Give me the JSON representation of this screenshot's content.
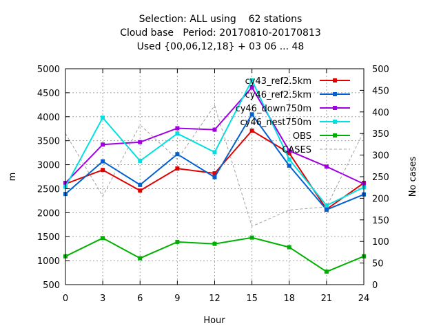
{
  "chart_data": {
    "type": "line",
    "title_lines": [
      "Selection: ALL using    62 stations",
      "Cloud base   Period: 20170810-20170813",
      "Used {00,06,12,18} + 03 06 ... 48"
    ],
    "xlabel": "Hour",
    "ylabel": "m",
    "y2label": "No cases",
    "x": [
      0,
      3,
      6,
      9,
      12,
      15,
      18,
      21,
      24
    ],
    "x_ticks": [
      "0",
      "3",
      "6",
      "9",
      "12",
      "15",
      "18",
      "21",
      "24"
    ],
    "xlim": [
      0,
      24
    ],
    "ylim": [
      500,
      5000
    ],
    "y_ticks": [
      "500",
      "1000",
      "1500",
      "2000",
      "2500",
      "3000",
      "3500",
      "4000",
      "4500",
      "5000"
    ],
    "y2lim": [
      0,
      500
    ],
    "y2_ticks": [
      "0",
      "50",
      "100",
      "150",
      "200",
      "250",
      "300",
      "350",
      "400",
      "450",
      "500"
    ],
    "grid": true,
    "legend_position": "top-right",
    "series": [
      {
        "name": "cy43_ref2.5km",
        "color": "#e00000",
        "marker": "square",
        "axis": "y1",
        "values": [
          2600,
          2890,
          2460,
          2920,
          2820,
          3710,
          3240,
          2070,
          2620
        ]
      },
      {
        "name": "cy46_ref2.5km",
        "color": "#0060d0",
        "marker": "square",
        "axis": "y1",
        "values": [
          2390,
          3070,
          2580,
          3220,
          2740,
          4050,
          2980,
          2060,
          2380
        ]
      },
      {
        "name": "cy46_down750m",
        "color": "#a000e0",
        "marker": "square",
        "axis": "y1",
        "values": [
          2620,
          3420,
          3470,
          3760,
          3730,
          4610,
          3290,
          2960,
          2600
        ]
      },
      {
        "name": "cy46_nest750m",
        "color": "#00e0e0",
        "marker": "square",
        "axis": "y1",
        "values": [
          2540,
          3980,
          3080,
          3650,
          3260,
          4760,
          3110,
          2150,
          2530
        ]
      },
      {
        "name": "OBS",
        "color": "#00b000",
        "marker": "square",
        "axis": "y1",
        "values": [
          1090,
          1470,
          1050,
          1390,
          1350,
          1480,
          1280,
          770,
          1090
        ]
      },
      {
        "name": "CASES",
        "color": "#a0a0a0",
        "marker": "none",
        "dashed": true,
        "axis": "y2",
        "values": [
          350,
          205,
          370,
          290,
          415,
          135,
          173,
          180,
          355
        ]
      }
    ]
  }
}
